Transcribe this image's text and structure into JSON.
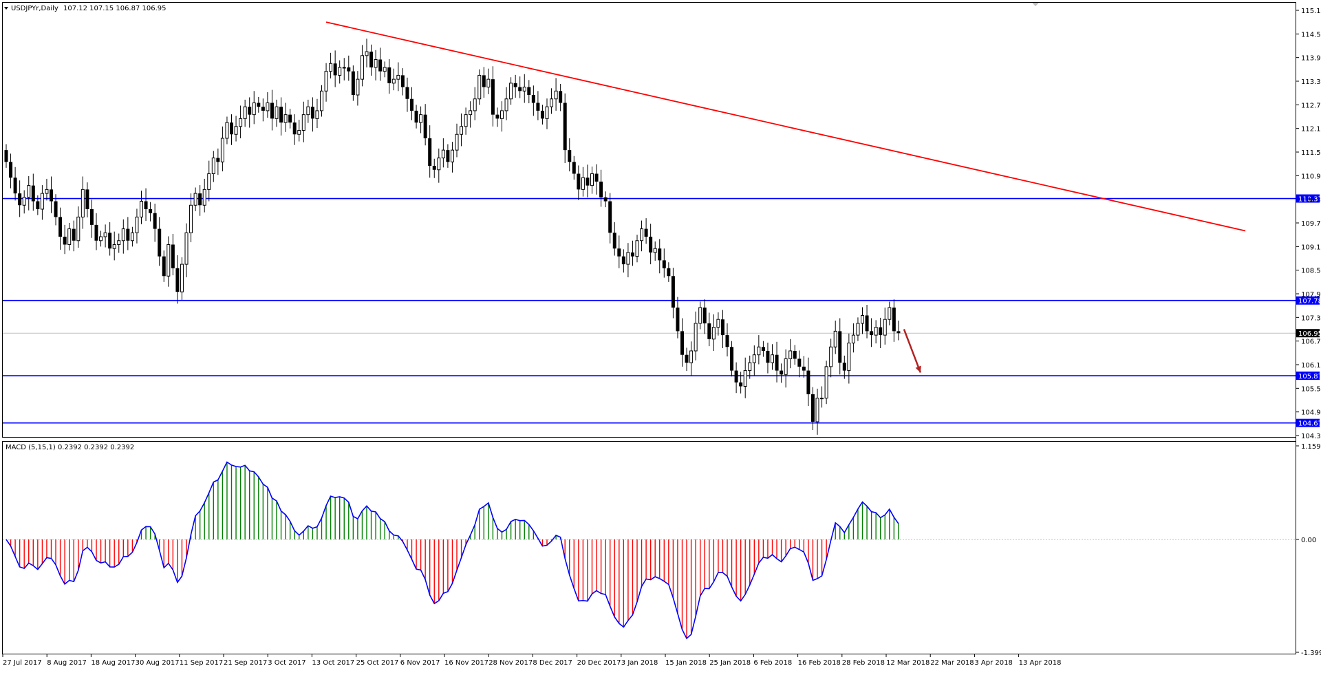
{
  "window": {
    "title": "USDJPYr,Daily",
    "ohlc": "107.12 107.15 106.87 106.95",
    "dropdown_icon": "triangle-down-icon"
  },
  "indicator": {
    "label": "MACD (5,15,1) 0.2392 0.2392 0.2392"
  },
  "price_axis": {
    "ticks": [
      "115.15",
      "114.55",
      "113.95",
      "113.35",
      "112.75",
      "112.15",
      "111.55",
      "110.95",
      "110.35",
      "109.75",
      "109.15",
      "108.55",
      "107.95",
      "107.35",
      "106.75",
      "106.15",
      "105.55",
      "104.95",
      "104.35"
    ],
    "current_price": "106.95"
  },
  "macd_axis": {
    "ticks": [
      "1.1599",
      "0.00",
      "-1.3996"
    ]
  },
  "levels": [
    {
      "label": "110.37",
      "value": 110.37
    },
    {
      "label": "107.78",
      "value": 107.78
    },
    {
      "label": "105.87",
      "value": 105.87
    },
    {
      "label": "104.67",
      "value": 104.67
    }
  ],
  "date_axis": {
    "labels": [
      "27 Jul 2017",
      "8 Aug 2017",
      "18 Aug 2017",
      "30 Aug 2017",
      "11 Sep 2017",
      "21 Sep 2017",
      "3 Oct 2017",
      "13 Oct 2017",
      "25 Oct 2017",
      "6 Nov 2017",
      "16 Nov 2017",
      "28 Nov 2017",
      "8 Dec 2017",
      "20 Dec 2017",
      "3 Jan 2018",
      "15 Jan 2018",
      "25 Jan 2018",
      "6 Feb 2018",
      "16 Feb 2018",
      "28 Feb 2018",
      "12 Mar 2018",
      "22 Mar 2018",
      "3 Apr 2018",
      "13 Apr 2018"
    ]
  },
  "colors": {
    "level_line": "#0000ff",
    "trendline": "#ff0000",
    "arrow": "#b22222",
    "macd_positive": "#008000",
    "macd_negative": "#ff0000",
    "macd_line": "#0000ff",
    "candle": "#000000"
  },
  "chart_data": {
    "type": "candlestick",
    "symbol": "USDJPYr",
    "timeframe": "Daily",
    "closes": [
      111.3,
      110.9,
      110.5,
      110.2,
      110.4,
      110.7,
      110.3,
      110.1,
      110.5,
      110.6,
      110.3,
      109.9,
      109.4,
      109.2,
      109.6,
      109.3,
      109.9,
      110.6,
      110.1,
      109.7,
      109.3,
      109.4,
      109.5,
      109.1,
      109.2,
      109.3,
      109.6,
      109.3,
      109.5,
      109.9,
      110.3,
      110.1,
      110.0,
      109.6,
      108.9,
      108.4,
      109.2,
      108.6,
      108.0,
      108.7,
      109.5,
      110.2,
      110.5,
      110.2,
      110.6,
      111.0,
      111.4,
      111.3,
      111.9,
      112.3,
      112.0,
      112.2,
      112.4,
      112.7,
      112.5,
      112.8,
      112.7,
      112.6,
      112.8,
      112.4,
      112.7,
      112.3,
      112.5,
      112.3,
      112.0,
      112.1,
      112.5,
      112.7,
      112.4,
      112.6,
      113.1,
      113.6,
      113.8,
      113.5,
      113.7,
      113.7,
      113.6,
      113.0,
      113.4,
      114.0,
      114.1,
      113.7,
      113.9,
      113.6,
      113.7,
      113.3,
      113.4,
      113.5,
      113.2,
      112.9,
      112.6,
      112.3,
      112.5,
      111.9,
      111.2,
      111.1,
      111.4,
      111.6,
      111.3,
      111.6,
      112.0,
      112.2,
      112.5,
      112.6,
      112.9,
      113.5,
      113.2,
      113.4,
      112.5,
      112.4,
      112.6,
      112.9,
      113.3,
      113.2,
      113.1,
      113.2,
      113.0,
      112.8,
      112.6,
      112.4,
      112.7,
      112.9,
      113.1,
      112.8,
      111.6,
      111.3,
      111.0,
      110.6,
      110.9,
      110.7,
      111.0,
      110.8,
      110.4,
      110.3,
      109.5,
      109.1,
      108.9,
      108.7,
      109.0,
      108.9,
      109.3,
      109.6,
      109.4,
      109.0,
      109.1,
      108.8,
      108.6,
      108.4,
      107.6,
      107.0,
      106.4,
      106.2,
      106.5,
      107.2,
      107.6,
      107.2,
      106.8,
      107.1,
      107.3,
      106.9,
      106.6,
      106.0,
      105.7,
      105.6,
      106.0,
      106.2,
      106.4,
      106.6,
      106.5,
      106.2,
      106.4,
      106.0,
      105.9,
      106.3,
      106.5,
      106.3,
      106.1,
      106.0,
      105.4,
      104.7,
      105.3,
      105.3,
      106.1,
      106.6,
      107.0,
      106.2,
      106.0,
      106.7,
      106.9,
      107.2,
      107.4,
      107.0,
      106.9,
      107.1,
      106.9,
      107.3,
      107.6,
      107.0,
      106.95
    ],
    "macd": {
      "name": "MACD (5,15,1)",
      "value": 0.2392,
      "ylim": [
        -1.3996,
        1.1599
      ]
    },
    "price_ylim": [
      104.35,
      115.15
    ],
    "horizontal_levels": [
      110.37,
      107.78,
      105.87,
      104.67
    ]
  }
}
